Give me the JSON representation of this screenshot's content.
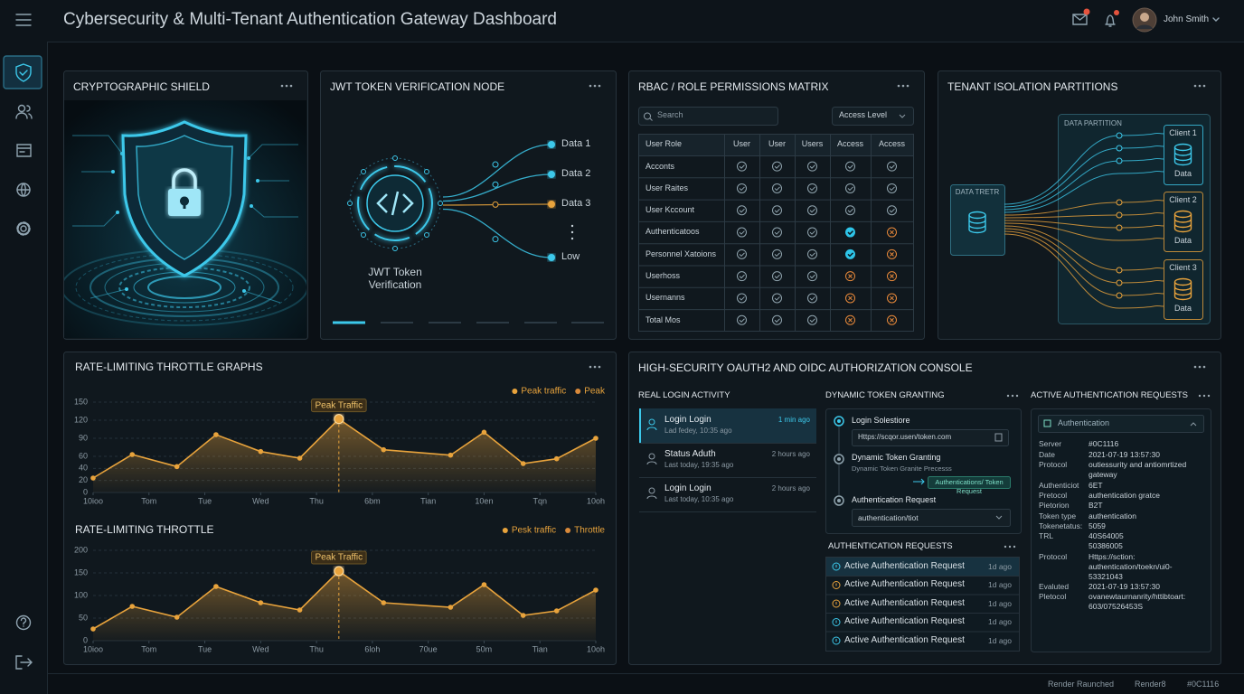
{
  "header": {
    "title": "Cybersecurity & Multi-Tenant Authentication Gateway Dashboard",
    "user": "John Smith"
  },
  "shield": {
    "title": "CRYPTOGRAPHIC SHIELD"
  },
  "jwt": {
    "title": "JWT TOKEN VERIFICATION NODE",
    "node_label": "JWT Token Verification",
    "outputs": [
      {
        "label": "Data 1",
        "color": "#3cc8ea"
      },
      {
        "label": "Data 2",
        "color": "#3cc8ea"
      },
      {
        "label": "Data 3",
        "color": "#e8a33c"
      },
      {
        "label": "Low",
        "color": "#3cc8ea"
      }
    ]
  },
  "rbac": {
    "title": "RBAC / ROLE PERMISSIONS MATRIX",
    "search": "Search",
    "filter": "Access Level",
    "columns": [
      "User Role",
      "User",
      "User",
      "Users",
      "Access",
      "Access"
    ],
    "rows": [
      "Acconts",
      "User Raites",
      "User Kccount",
      "Authenticatoos",
      "Personnel Xatoions",
      "Userhoss",
      "Usernanns",
      "Total Mos"
    ]
  },
  "tenant": {
    "title": "TENANT ISOLATION PARTITIONS",
    "source": "DATA TRETR",
    "partition": "DATA PARTITION",
    "clients": [
      {
        "name": "Client 1",
        "label": "Data",
        "color": "#3cc8ea"
      },
      {
        "name": "Client 2",
        "label": "Data",
        "color": "#e8a33c"
      },
      {
        "name": "Client 3",
        "label": "Data",
        "color": "#e8a33c"
      }
    ]
  },
  "chart_data": [
    {
      "type": "line",
      "title": "RATE-LIMITING THROTTLE GRAPHS",
      "x": [
        0,
        0.7,
        1.5,
        2.2,
        3,
        3.7,
        4.4,
        5.2,
        6.4,
        7,
        7.7,
        8.3,
        9
      ],
      "values": [
        24,
        63,
        43,
        96,
        68,
        57,
        122,
        71,
        62,
        100,
        48,
        56,
        90
      ],
      "color": "#e8a33c",
      "xlim": [
        0,
        9
      ],
      "xticks": [
        {
          "value": 0,
          "label": "10ioo"
        },
        {
          "value": 1,
          "label": "Tom"
        },
        {
          "value": 2,
          "label": "Tue"
        },
        {
          "value": 3,
          "label": "Wed"
        },
        {
          "value": 4,
          "label": "Thu"
        },
        {
          "value": 5,
          "label": "6bm"
        },
        {
          "value": 6,
          "label": "Tian"
        },
        {
          "value": 7,
          "label": "10en"
        },
        {
          "value": 8,
          "label": "Tqn"
        },
        {
          "value": 9,
          "label": "10oh"
        }
      ],
      "ylim": [
        0,
        150
      ],
      "yticks": [
        0,
        20,
        40,
        60,
        90,
        120,
        150
      ],
      "grid": true,
      "legend": [
        {
          "name": "Peak traffic",
          "color": "#e8a33c"
        },
        {
          "name": "Peak",
          "color": "#d9893a"
        }
      ],
      "annotation": {
        "text": "Peak Traffic",
        "x": 4.4
      }
    },
    {
      "type": "line",
      "title": "RATE-LIMITING THROTTLE",
      "x": [
        0,
        0.7,
        1.5,
        2.2,
        3,
        3.7,
        4.4,
        5.2,
        6.4,
        7,
        7.7,
        8.3,
        9
      ],
      "values": [
        26,
        76,
        52,
        120,
        84,
        68,
        154,
        84,
        74,
        124,
        56,
        66,
        112
      ],
      "color": "#e8a33c",
      "xlim": [
        0,
        9
      ],
      "xticks": [
        {
          "value": 0,
          "label": "10ioo"
        },
        {
          "value": 1,
          "label": "Tom"
        },
        {
          "value": 2,
          "label": "Tue"
        },
        {
          "value": 3,
          "label": "Wed"
        },
        {
          "value": 4,
          "label": "Thu"
        },
        {
          "value": 5,
          "label": "6loh"
        },
        {
          "value": 6,
          "label": "70ue"
        },
        {
          "value": 7,
          "label": "50m"
        },
        {
          "value": 8,
          "label": "Tian"
        },
        {
          "value": 9,
          "label": "10oh"
        }
      ],
      "ylim": [
        0,
        200
      ],
      "yticks": [
        0,
        50,
        100,
        150,
        200
      ],
      "grid": true,
      "legend": [
        {
          "name": "Pesk traffic",
          "color": "#e8a33c"
        },
        {
          "name": "Throttle",
          "color": "#d9893a"
        }
      ],
      "annotation": {
        "text": "Peak Traffic",
        "x": 4.4
      }
    }
  ],
  "oauth": {
    "title": "HIGH-SECURITY OAUTH2 AND OIDC AUTHORIZATION CONSOLE",
    "login": {
      "title": "REAL LOGIN ACTIVITY",
      "items": [
        {
          "name": "Login Login",
          "sub": "Lad fedey, 10:35 ago",
          "time": "1 min ago"
        },
        {
          "name": "Status Aduth",
          "sub": "Last today, 19:35 ago",
          "time": "2 hours ago"
        },
        {
          "name": "Login Login",
          "sub": "Last today, 10:35 ago",
          "time": "2 hours ago"
        }
      ]
    },
    "grant": {
      "title": "DYNAMIC TOKEN GRANTING",
      "step1": "Login Solestiore",
      "field1": "Https://scqor.usen/token.com",
      "step2": "Dynamic Token Granting",
      "sub2": "Dynamic Token Granite Precesss",
      "badge": "Authentications/ Token Request",
      "step3": "Authentication Request",
      "field3": "authentication/tiot"
    },
    "requests": {
      "title": "AUTHENTICATION REQUESTS",
      "items": [
        {
          "label": "Active Authentication Request",
          "time": "1d ago"
        },
        {
          "label": "Active Authentication Request",
          "time": "1d ago"
        },
        {
          "label": "Active Authentication Request",
          "time": "1d ago"
        },
        {
          "label": "Active Authentication Request",
          "time": "1d ago"
        },
        {
          "label": "Active Authentication Request",
          "time": "1d ago"
        }
      ]
    },
    "active": {
      "title": "ACTIVE AUTHENTICATION REQUESTS",
      "dropdown": "Authentication",
      "fields": [
        {
          "label": "Server",
          "value": "#0C1116"
        },
        {
          "label": "Date",
          "value": "2021-07-19 13:57:30"
        },
        {
          "label": "Protocol",
          "value": "outiessurity and antiomrtized gateway"
        },
        {
          "label": "Authenticiot",
          "value": "6ET"
        },
        {
          "label": "Pretocol",
          "value": "authentication gratce"
        },
        {
          "label": "Pietorion",
          "value": "B2T"
        },
        {
          "label": "Token type",
          "value": "authentication"
        },
        {
          "label": "Tokenetatus:",
          "value": "5059"
        },
        {
          "label": "TRL",
          "value": "40S64005"
        },
        {
          "value": "50386005"
        },
        {
          "label": "Protocol",
          "value": "Https://sction: authentication/toekn/ui0-53321043"
        },
        {
          "label": "Evaluted",
          "value": "2021-07-19 13:57:30"
        },
        {
          "label": "Pletocol",
          "value": "ovanewtaurnanrity/httibtoart: 603/07526453S"
        }
      ]
    }
  },
  "footer": [
    "Render Raunched",
    "Render8",
    "#0C1116"
  ]
}
